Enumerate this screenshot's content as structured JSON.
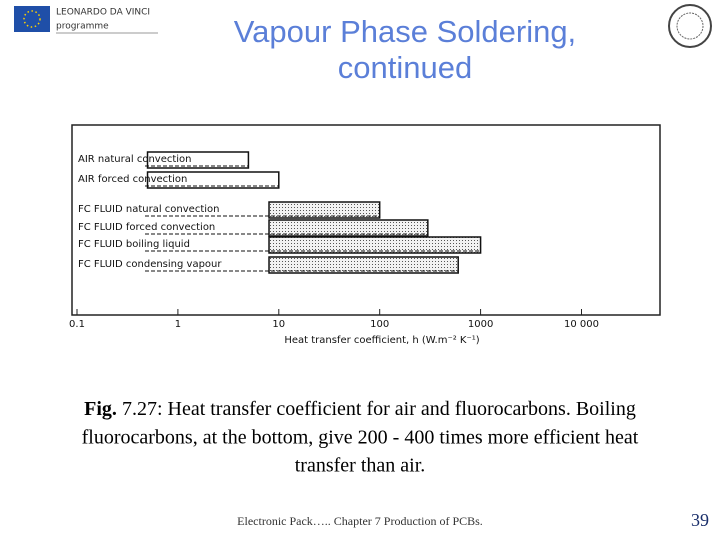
{
  "header": {
    "logo_line1": "LEONARDO DA VINCI",
    "logo_line2": "programme",
    "title_lines": [
      "Vapour Phase Soldering,",
      "continued"
    ]
  },
  "chart_data": {
    "type": "range-bar",
    "categories": [
      "AIR natural convection",
      "AIR forced convection",
      "FC FLUID natural convection",
      "FC FLUID forced convection",
      "FC FLUID boiling liquid",
      "FC FLUID condensing vapour"
    ],
    "low": [
      0.5,
      0.5,
      8,
      8,
      8,
      8
    ],
    "high": [
      5,
      10,
      100,
      300,
      1000,
      600
    ],
    "colors": [
      "#ffffff",
      "#ffffff",
      "#d9d9d9",
      "#d9d9d9",
      "#d9d9d9",
      "#d9d9d9"
    ],
    "x_label": "Heat transfer coefficient, h (W.m⁻² K⁻¹)",
    "xlim": [
      0.1,
      60000
    ],
    "log_x": true,
    "xticks": [
      0.1,
      1,
      10,
      100,
      1000,
      {
        "value": 10000,
        "label": "10 000"
      }
    ]
  },
  "caption": {
    "label": "Fig.",
    "text": " 7.27: Heat transfer coefficient for air and fluorocarbons. Boiling",
    "line2": "fluorocarbons, at the bottom, give 200 - 400 times more efficient heat",
    "line3": "transfer than air."
  },
  "footer": {
    "text": "Electronic Pack….. Chapter 7 Production of PCBs.",
    "page": "39"
  }
}
